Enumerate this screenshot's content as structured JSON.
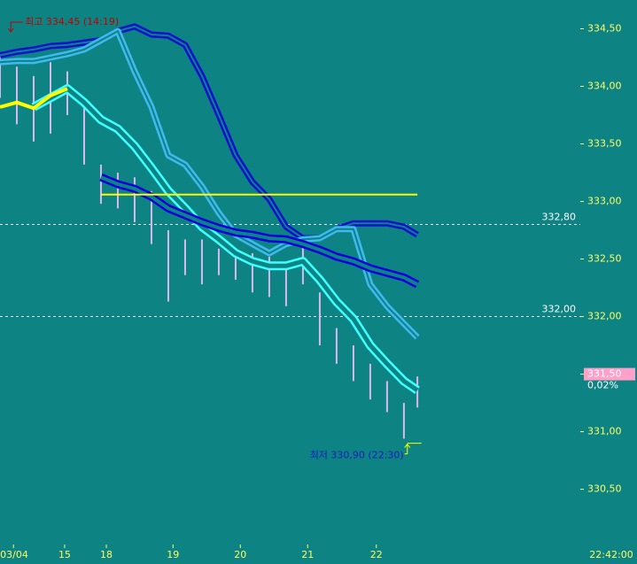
{
  "chart_data": {
    "type": "price",
    "x": [
      0,
      0.25,
      0.5,
      0.75,
      1,
      1.25,
      1.5,
      1.75,
      2,
      2.25,
      2.5,
      2.75,
      3,
      3.25,
      3.5,
      3.75,
      4,
      4.25,
      4.5,
      4.75,
      5,
      5.25,
      5.5,
      5.75,
      6,
      6.2
    ],
    "xlim": [
      0,
      8.62
    ],
    "xticks": [
      {
        "value": 0.2,
        "label": "03/04"
      },
      0.96,
      1.58,
      2.57,
      3.57,
      4.57,
      5.59
    ],
    "xtick_labels": [
      "03/04",
      "15",
      "18",
      "19",
      "20",
      "21",
      "22"
    ],
    "last_time": "22:42:00",
    "ylim": [
      330.02,
      334.75
    ],
    "yticks": [
      {
        "value": 334.5,
        "label": "334,50"
      },
      {
        "value": 334,
        "label": "334,00"
      },
      {
        "value": 333.5,
        "label": "333,50"
      },
      {
        "value": 333,
        "label": "333,00"
      },
      {
        "value": 332.5,
        "label": "332,50"
      },
      {
        "value": 332,
        "label": "332,00"
      },
      {
        "value": 331.5,
        "label": "331,50"
      },
      {
        "value": 331,
        "label": "331,00"
      },
      {
        "value": 330.5,
        "label": "330,50"
      }
    ],
    "price": {
      "color": "#d8b8f0",
      "high": [
        334.28,
        334.17,
        334.09,
        334.21,
        334.13,
        333.9,
        333.32,
        333.25,
        333.21,
        333.09,
        332.75,
        332.67,
        332.67,
        332.59,
        332.59,
        332.55,
        332.52,
        332.44,
        332.67,
        332.21,
        331.9,
        331.75,
        331.59,
        331.44,
        331.25,
        331.48
      ],
      "low": [
        333.9,
        333.67,
        333.52,
        333.59,
        333.75,
        333.32,
        332.98,
        332.94,
        332.82,
        332.63,
        332.13,
        332.36,
        332.28,
        332.36,
        332.32,
        332.21,
        332.17,
        332.09,
        332.28,
        331.75,
        331.59,
        331.44,
        331.28,
        331.17,
        330.94,
        331.21
      ]
    },
    "series": [
      {
        "color": "#1010d0",
        "width": 7,
        "values": [
          334.27,
          334.3,
          334.32,
          334.35,
          334.36,
          334.38,
          334.4,
          334.48,
          334.52,
          334.45,
          334.44,
          334.36,
          334.09,
          333.75,
          333.4,
          333.17,
          333.02,
          332.78,
          332.68,
          332.68,
          332.76,
          332.81,
          332.81,
          332.81,
          332.78,
          332.71
        ]
      },
      {
        "color": "#40b8f0",
        "width": 7,
        "values": [
          334.21,
          334.22,
          334.22,
          334.25,
          334.28,
          334.32,
          334.4,
          334.48,
          334.13,
          333.82,
          333.4,
          333.32,
          333.13,
          332.9,
          332.71,
          332.63,
          332.55,
          332.63,
          332.67,
          332.68,
          332.76,
          332.76,
          332.28,
          332.09,
          331.94,
          331.82
        ]
      },
      {
        "color": "#40ffff",
        "width": 10,
        "values": [
          null,
          null,
          333.82,
          333.9,
          333.98,
          333.86,
          333.71,
          333.63,
          333.48,
          333.29,
          333.09,
          332.94,
          332.78,
          332.67,
          332.55,
          332.48,
          332.44,
          332.44,
          332.48,
          332.32,
          332.13,
          331.98,
          331.75,
          331.59,
          331.44,
          331.36
        ]
      },
      {
        "color": "#0000e0",
        "width": 9,
        "values": [
          null,
          null,
          null,
          null,
          null,
          null,
          333.21,
          333.15,
          333.11,
          333.04,
          332.94,
          332.88,
          332.82,
          332.77,
          332.73,
          332.71,
          332.68,
          332.67,
          332.63,
          332.58,
          332.52,
          332.48,
          332.42,
          332.38,
          332.34,
          332.28
        ]
      },
      {
        "color": "#ffff00",
        "width": 2,
        "values": [
          null,
          null,
          null,
          null,
          null,
          null,
          333.06,
          333.06,
          333.06,
          333.06,
          333.06,
          333.06,
          333.06,
          333.06,
          333.06,
          333.06,
          333.06,
          333.06,
          333.06,
          333.06,
          333.06,
          333.06,
          333.06,
          333.06,
          333.06,
          333.06
        ]
      },
      {
        "color": "#ffff00",
        "width": 4,
        "values": [
          333.82,
          333.86,
          333.81,
          333.92,
          333.98,
          null,
          null,
          null,
          null,
          null,
          null,
          null,
          null,
          null,
          null,
          null,
          null,
          null,
          null,
          null,
          null,
          null,
          null,
          null,
          null,
          null
        ]
      }
    ],
    "reference_lines": [
      {
        "value": 332.8,
        "label": "332,80"
      },
      {
        "value": 332,
        "label": "332,00"
      }
    ],
    "high_note": {
      "text": "최고 334,45 (14:19)",
      "value": 334.45,
      "x": 0.16
    },
    "low_note": {
      "text": "최저 330,90 (22:30)",
      "value": 330.9,
      "x": 6.05
    },
    "current": {
      "value": 331.5,
      "label": "331,50",
      "change": "0,02%"
    }
  }
}
